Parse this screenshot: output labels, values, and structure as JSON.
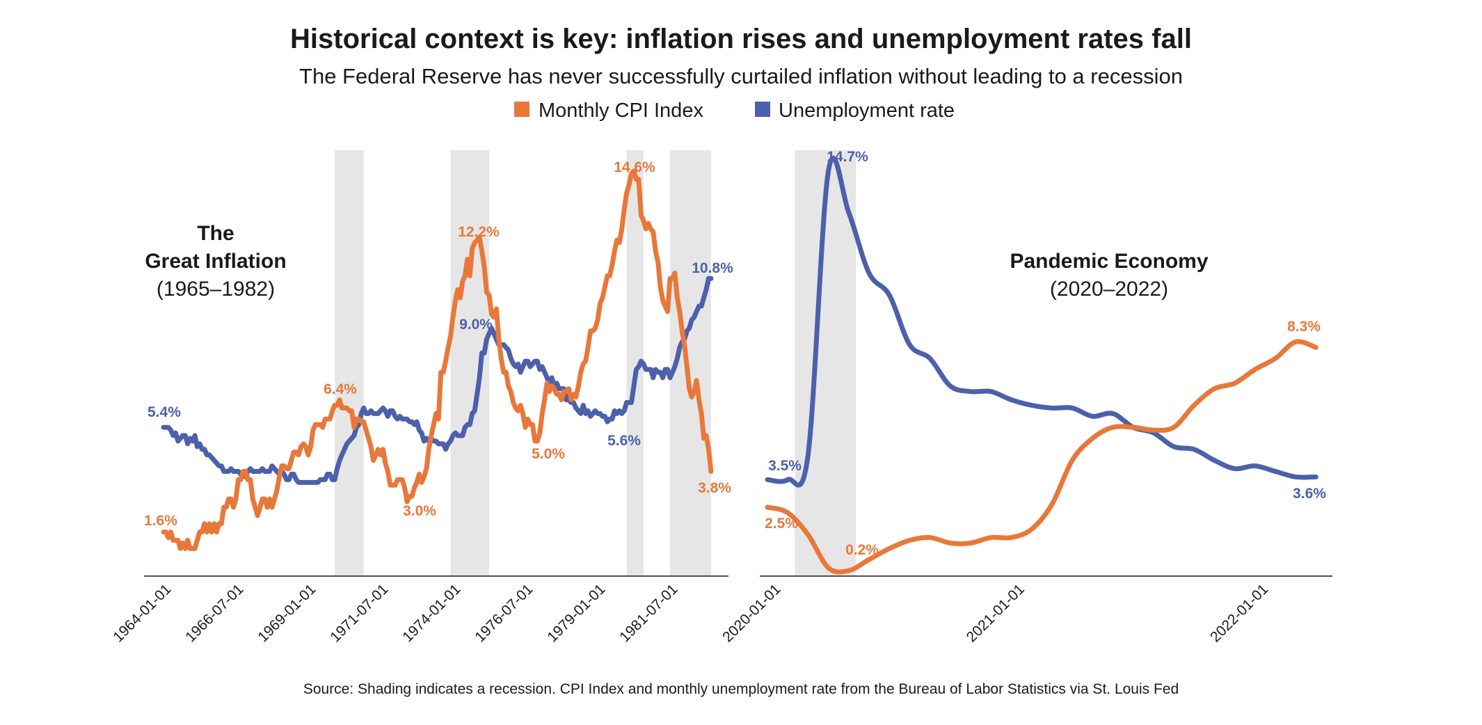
{
  "chart_data": {
    "title": "Historical context is key: inflation rises and unemployment rates fall",
    "subtitle": "The Federal Reserve has never successfully curtailed inflation without leading to a recession",
    "source": "Source: Shading indicates a recession. CPI Index and monthly unemployment rate from the Bureau of Labor Statistics via St. Louis Fed",
    "legend": [
      {
        "name": "Monthly CPI Index",
        "color": "#E8783A"
      },
      {
        "name": "Unemployment rate",
        "color": "#4C60AB"
      }
    ],
    "legend_placement": "top-center",
    "recession_shading_color": "#E6E6E6",
    "grid": false,
    "panels": [
      {
        "type": "line",
        "annotation": {
          "line1": "The",
          "line2": "Great Inflation",
          "line3": "(1965–1982)"
        },
        "ylim": [
          0,
          15.5
        ],
        "xlim": [
          "1962-11",
          "1983-03"
        ],
        "x_start": "1964-01",
        "frequency": "monthly",
        "x_ticks": [
          "1964-01-01",
          "1966-07-01",
          "1969-01-01",
          "1971-07-01",
          "1974-01-01",
          "1976-07-01",
          "1979-01-01",
          "1981-07-01"
        ],
        "recessions": [
          [
            "1969-12",
            "1970-11"
          ],
          [
            "1973-12",
            "1975-03"
          ],
          [
            "1980-01",
            "1980-07"
          ],
          [
            "1981-07",
            "1982-11"
          ]
        ],
        "series": [
          {
            "name": "Monthly CPI Index",
            "values": [
              1.6,
              1.6,
              1.4,
              1.6,
              1.3,
              1.3,
              1.3,
              1.0,
              1.2,
              1.0,
              1.3,
              1.0,
              1.0,
              1.0,
              1.3,
              1.6,
              1.6,
              1.9,
              1.6,
              1.9,
              1.6,
              1.9,
              1.6,
              1.9,
              1.9,
              2.5,
              2.5,
              2.8,
              2.8,
              2.5,
              2.8,
              3.5,
              3.5,
              3.8,
              3.8,
              3.5,
              3.5,
              2.8,
              2.5,
              2.2,
              2.5,
              2.8,
              2.8,
              2.5,
              2.8,
              2.5,
              2.8,
              3.1,
              3.6,
              4.0,
              4.0,
              3.9,
              3.9,
              4.2,
              4.5,
              4.5,
              4.4,
              4.7,
              4.8,
              4.7,
              4.4,
              4.7,
              5.3,
              5.5,
              5.5,
              5.5,
              5.4,
              5.7,
              5.7,
              5.7,
              6.0,
              6.2,
              6.2,
              6.4,
              6.1,
              6.1,
              6.1,
              6.0,
              6.0,
              5.4,
              5.7,
              5.7,
              5.6,
              5.6,
              5.3,
              5.0,
              4.7,
              4.2,
              4.4,
              4.6,
              4.4,
              4.6,
              4.1,
              3.8,
              3.3,
              3.3,
              3.3,
              3.5,
              3.5,
              3.5,
              3.2,
              2.7,
              2.9,
              2.9,
              3.2,
              3.4,
              3.7,
              3.4,
              3.6,
              3.9,
              4.6,
              5.1,
              5.5,
              5.9,
              5.7,
              7.4,
              7.4,
              7.8,
              8.3,
              8.7,
              9.4,
              10.0,
              10.4,
              10.1,
              10.7,
              10.9,
              11.5,
              10.9,
              11.9,
              12.1,
              12.2,
              12.3,
              11.8,
              11.2,
              10.3,
              10.2,
              9.5,
              9.4,
              9.7,
              8.6,
              7.9,
              7.4,
              7.4,
              6.9,
              6.7,
              6.3,
              6.1,
              6.0,
              6.2,
              5.9,
              5.4,
              5.7,
              5.5,
              5.5,
              4.9,
              4.9,
              5.2,
              5.9,
              6.4,
              7.0,
              6.7,
              6.9,
              6.8,
              6.6,
              6.6,
              6.4,
              6.7,
              6.7,
              6.8,
              6.4,
              6.6,
              6.5,
              6.9,
              7.4,
              7.7,
              7.8,
              8.3,
              8.9,
              8.9,
              9.0,
              9.3,
              9.9,
              10.1,
              10.5,
              10.9,
              10.9,
              11.3,
              11.8,
              12.2,
              12.1,
              12.6,
              13.3,
              13.9,
              14.2,
              14.6,
              14.7,
              14.4,
              14.4,
              13.1,
              12.9,
              12.6,
              12.8,
              12.6,
              12.5,
              11.8,
              11.4,
              10.5,
              10.0,
              9.8,
              9.6,
              10.8,
              10.8,
              11.0,
              10.1,
              9.6,
              8.9,
              8.4,
              7.6,
              6.8,
              6.5,
              6.7,
              7.1,
              6.4,
              5.9,
              5.0,
              5.1,
              4.6,
              3.8
            ]
          },
          {
            "name": "Unemployment rate",
            "values": [
              5.4,
              5.4,
              5.4,
              5.3,
              5.1,
              5.2,
              4.9,
              5.0,
              5.1,
              5.1,
              4.8,
              5.0,
              4.9,
              5.1,
              4.7,
              4.8,
              4.6,
              4.6,
              4.4,
              4.4,
              4.3,
              4.2,
              4.1,
              4.0,
              4.0,
              3.8,
              3.8,
              3.8,
              3.9,
              3.8,
              3.8,
              3.8,
              3.7,
              3.7,
              3.6,
              3.8,
              3.9,
              3.8,
              3.8,
              3.8,
              3.8,
              3.9,
              3.8,
              3.8,
              3.8,
              4.0,
              3.9,
              3.8,
              3.7,
              3.8,
              3.7,
              3.5,
              3.5,
              3.7,
              3.7,
              3.5,
              3.4,
              3.4,
              3.4,
              3.4,
              3.4,
              3.4,
              3.4,
              3.4,
              3.4,
              3.5,
              3.5,
              3.5,
              3.7,
              3.7,
              3.5,
              3.5,
              3.9,
              4.2,
              4.4,
              4.6,
              4.8,
              4.9,
              5.0,
              5.1,
              5.4,
              5.5,
              5.9,
              6.1,
              5.9,
              5.9,
              6.0,
              5.9,
              5.9,
              5.9,
              6.0,
              6.1,
              6.0,
              5.8,
              6.0,
              6.0,
              5.8,
              5.7,
              5.8,
              5.7,
              5.7,
              5.7,
              5.6,
              5.6,
              5.5,
              5.6,
              5.3,
              5.2,
              4.9,
              5.0,
              4.9,
              5.0,
              4.9,
              4.9,
              4.8,
              4.8,
              4.8,
              4.6,
              4.8,
              4.9,
              5.1,
              5.2,
              5.1,
              5.1,
              5.1,
              5.4,
              5.5,
              5.5,
              5.9,
              6.0,
              6.6,
              7.2,
              8.1,
              8.1,
              8.6,
              8.8,
              9.0,
              8.8,
              8.6,
              8.4,
              8.4,
              8.4,
              8.3,
              8.2,
              7.9,
              7.7,
              7.6,
              7.7,
              7.4,
              7.6,
              7.8,
              7.8,
              7.6,
              7.7,
              7.8,
              7.8,
              7.5,
              7.6,
              7.4,
              7.2,
              7.0,
              7.2,
              6.9,
              7.0,
              6.8,
              6.8,
              6.8,
              6.4,
              6.4,
              6.3,
              6.3,
              6.1,
              6.0,
              5.9,
              6.2,
              5.9,
              6.0,
              5.8,
              5.9,
              6.0,
              5.9,
              5.9,
              5.8,
              5.8,
              5.6,
              5.7,
              5.7,
              6.0,
              5.9,
              6.0,
              5.9,
              6.0,
              6.3,
              6.3,
              6.3,
              6.9,
              7.5,
              7.6,
              7.8,
              7.7,
              7.5,
              7.5,
              7.5,
              7.2,
              7.5,
              7.4,
              7.4,
              7.2,
              7.5,
              7.5,
              7.2,
              7.4,
              7.6,
              7.9,
              8.3,
              8.5,
              8.6,
              8.9,
              9.0,
              9.3,
              9.4,
              9.6,
              9.8,
              9.8,
              10.1,
              10.4,
              10.8,
              10.8
            ]
          }
        ],
        "data_labels": [
          {
            "text": "5.4%",
            "series": "Unemployment rate"
          },
          {
            "text": "1.6%",
            "series": "Monthly CPI Index"
          },
          {
            "text": "6.4%",
            "series": "Monthly CPI Index"
          },
          {
            "text": "3.0%",
            "series": "Monthly CPI Index"
          },
          {
            "text": "12.2%",
            "series": "Monthly CPI Index"
          },
          {
            "text": "9.0%",
            "series": "Unemployment rate"
          },
          {
            "text": "5.0%",
            "series": "Monthly CPI Index"
          },
          {
            "text": "5.6%",
            "series": "Unemployment rate"
          },
          {
            "text": "14.6%",
            "series": "Monthly CPI Index"
          },
          {
            "text": "10.8%",
            "series": "Unemployment rate"
          },
          {
            "text": "3.8%",
            "series": "Monthly CPI Index"
          }
        ]
      },
      {
        "type": "line",
        "annotation": {
          "line1": "Pandemic Economy",
          "line2": "(2020–2022)"
        },
        "ylim": [
          0,
          15.5
        ],
        "xlim": [
          "2019-12",
          "2022-06"
        ],
        "x_start": "2020-01",
        "frequency": "monthly",
        "x_ticks": [
          "2020-01-01",
          "2021-01-01",
          "2022-01-01"
        ],
        "recessions": [
          [
            "2020-02",
            "2020-04"
          ]
        ],
        "series": [
          {
            "name": "Monthly CPI Index",
            "values": [
              2.5,
              2.3,
              1.5,
              0.3,
              0.2,
              0.6,
              1.0,
              1.3,
              1.4,
              1.2,
              1.2,
              1.4,
              1.4,
              1.7,
              2.6,
              4.2,
              5.0,
              5.4,
              5.4,
              5.3,
              5.4,
              6.2,
              6.8,
              7.0,
              7.5,
              7.9,
              8.5,
              8.3
            ]
          },
          {
            "name": "Unemployment rate",
            "values": [
              3.5,
              3.5,
              4.4,
              14.7,
              13.2,
              11.0,
              10.2,
              8.4,
              7.9,
              6.9,
              6.7,
              6.7,
              6.4,
              6.2,
              6.1,
              6.1,
              5.8,
              5.9,
              5.4,
              5.2,
              4.7,
              4.6,
              4.2,
              3.9,
              4.0,
              3.8,
              3.6,
              3.6
            ]
          }
        ],
        "data_labels": [
          {
            "text": "14.7%",
            "series": "Unemployment rate"
          },
          {
            "text": "3.5%",
            "series": "Unemployment rate"
          },
          {
            "text": "2.5%",
            "series": "Monthly CPI Index"
          },
          {
            "text": "0.2%",
            "series": "Monthly CPI Index"
          },
          {
            "text": "8.3%",
            "series": "Monthly CPI Index"
          },
          {
            "text": "3.6%",
            "series": "Unemployment rate"
          }
        ]
      }
    ]
  }
}
